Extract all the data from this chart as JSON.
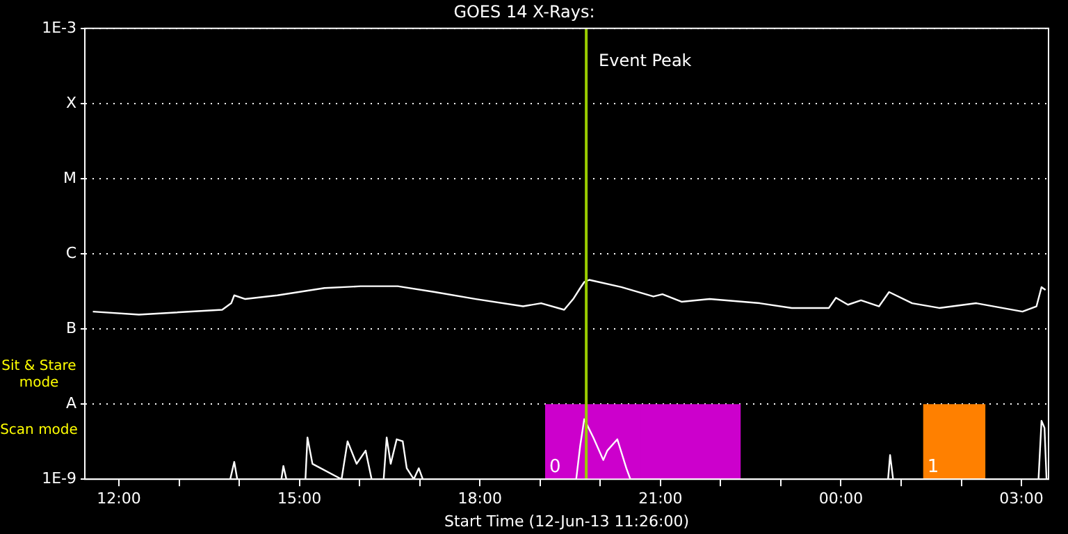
{
  "chart_data": {
    "type": "line",
    "title": "GOES 14 X-Rays:",
    "xlabel": "Start Time (12-Jun-13 11:26:00)",
    "series": [
      {
        "type": "line",
        "color": "#ffffff",
        "x": [
          "--06-12T11:34",
          "--06-12T12:20",
          "--06-12T13:43",
          "--06-12T13:52",
          "--06-12T13:55",
          "--06-12T14:06",
          "--06-12T14:38",
          "--06-12T15:25",
          "--06-12T16:01",
          "--06-12T16:38",
          "--06-12T17:15",
          "--06-12T17:56",
          "--06-12T18:43",
          "--06-12T19:01",
          "--06-12T19:24",
          "--06-12T19:33",
          "--06-12T19:40",
          "--06-12T19:44",
          "--06-12T19:49",
          "--06-12T20:21",
          "--06-12T20:53",
          "--06-12T21:02",
          "--06-12T21:21",
          "--06-12T21:49",
          "--06-12T22:39",
          "--06-12T23:11",
          "--06-12T23:48",
          "--06-12T23:55",
          "--06-13T00:07",
          "--06-13T00:20",
          "--06-13T00:38",
          "--06-13T00:48",
          "--06-13T01:11",
          "--06-13T01:38",
          "--06-13T02:15",
          "--06-13T03:01",
          "--06-13T03:15",
          "--06-13T03:20",
          "--06-13T03:24"
        ],
        "values": [
          1.7e-07,
          1.55e-07,
          1.8e-07,
          2.2e-07,
          2.8e-07,
          2.5e-07,
          2.8e-07,
          3.5e-07,
          3.7e-07,
          3.7e-07,
          3.1e-07,
          2.5e-07,
          2e-07,
          2.2e-07,
          1.8e-07,
          2.5e-07,
          3.5e-07,
          4.2e-07,
          4.5e-07,
          3.6e-07,
          2.7e-07,
          2.9e-07,
          2.3e-07,
          2.5e-07,
          2.2e-07,
          1.9e-07,
          1.9e-07,
          2.6e-07,
          2.1e-07,
          2.4e-07,
          2e-07,
          3.1e-07,
          2.2e-07,
          1.9e-07,
          2.2e-07,
          1.7e-07,
          2e-07,
          3.6e-07,
          3.3e-07
        ]
      },
      {
        "type": "line",
        "color": "#ffffff",
        "x": [
          "--06-12T13:51",
          "--06-12T13:55",
          "--06-12T13:58",
          "--06-12T14:42",
          "--06-12T14:44",
          "--06-12T14:47",
          "--06-12T15:06",
          "--06-12T15:08",
          "--06-12T15:13",
          "--06-12T15:42",
          "--06-12T15:48",
          "--06-12T15:57",
          "--06-12T16:06",
          "--06-12T16:12",
          "--06-12T16:24",
          "--06-12T16:27",
          "--06-12T16:31",
          "--06-12T16:37",
          "--06-12T16:43",
          "--06-12T16:47",
          "--06-12T16:54",
          "--06-12T16:59",
          "--06-12T17:03",
          "--06-12T19:36",
          "--06-12T19:40",
          "--06-12T19:44",
          "--06-12T19:53",
          "--06-12T20:03",
          "--06-12T20:07",
          "--06-12T20:17",
          "--06-12T20:26",
          "--06-12T20:30",
          "--06-13T00:47",
          "--06-13T00:49",
          "--06-13T00:52",
          "--06-13T03:17",
          "--06-13T03:20",
          "--06-13T03:23",
          "--06-13T03:25"
        ],
        "values": [
          1e-09,
          1.7e-09,
          1e-09,
          1e-09,
          1.5e-09,
          1e-09,
          1e-09,
          3.6e-09,
          1.6e-09,
          1e-09,
          3.2e-09,
          1.6e-09,
          2.4e-09,
          1e-09,
          1e-09,
          3.6e-09,
          1.6e-09,
          3.4e-09,
          3.2e-09,
          1.4e-09,
          1e-09,
          1.4e-09,
          1e-09,
          1e-09,
          2.8e-09,
          6.3e-09,
          3.6e-09,
          1.8e-09,
          2.4e-09,
          3.4e-09,
          1.4e-09,
          1e-09,
          1e-09,
          2.1e-09,
          1e-09,
          1e-09,
          6e-09,
          4.8e-09,
          1e-09
        ]
      }
    ],
    "xlim": [
      "--06-12T11:26",
      "--06-13T03:27"
    ],
    "xticks": [
      {
        "value": "--06-12T12:00",
        "label": "12:00"
      },
      {
        "value": "--06-12T13:00",
        "label": null
      },
      {
        "value": "--06-12T14:00",
        "label": null
      },
      {
        "value": "--06-12T15:00",
        "label": "15:00"
      },
      {
        "value": "--06-12T16:00",
        "label": null
      },
      {
        "value": "--06-12T17:00",
        "label": null
      },
      {
        "value": "--06-12T18:00",
        "label": "18:00"
      },
      {
        "value": "--06-12T19:00",
        "label": null
      },
      {
        "value": "--06-12T20:00",
        "label": null
      },
      {
        "value": "--06-12T21:00",
        "label": "21:00"
      },
      {
        "value": "--06-12T22:00",
        "label": null
      },
      {
        "value": "--06-12T23:00",
        "label": null
      },
      {
        "value": "--06-13T00:00",
        "label": "00:00"
      },
      {
        "value": "--06-13T01:00",
        "label": null
      },
      {
        "value": "--06-13T02:00",
        "label": null
      },
      {
        "value": "--06-13T03:00",
        "label": "03:00"
      }
    ],
    "ylim": [
      1e-09,
      0.001
    ],
    "yticks": [
      {
        "value": 1e-09,
        "label": "1E-9"
      },
      {
        "value": 1e-08,
        "label": "A"
      },
      {
        "value": 1e-07,
        "label": "B"
      },
      {
        "value": 1e-06,
        "label": "C"
      },
      {
        "value": 1e-05,
        "label": "M"
      },
      {
        "value": 0.0001,
        "label": "X"
      },
      {
        "value": 0.001,
        "label": "1E-3"
      }
    ],
    "log": "y",
    "grid": "y",
    "legend": false,
    "marker": "none",
    "line_style": "solid",
    "ref_lines": [
      {
        "axis": "x",
        "value": "--06-12T19:46",
        "label": "Event Peak",
        "color": "#99cc00"
      }
    ],
    "bands": [
      {
        "axis": "x",
        "from": "--06-12T19:05",
        "to": "--06-12T20:40",
        "label": "0",
        "color": "#cc00cc"
      },
      {
        "axis": "x",
        "from": "--06-12T20:40",
        "to": "--06-12T22:20",
        "color": "#cc00cc"
      },
      {
        "axis": "x",
        "from": "--06-13T01:22",
        "to": "--06-13T02:24",
        "label": "1",
        "color": "#ff8000"
      }
    ],
    "annotations": [
      "Sit & Stare mode",
      "Scan mode"
    ]
  }
}
